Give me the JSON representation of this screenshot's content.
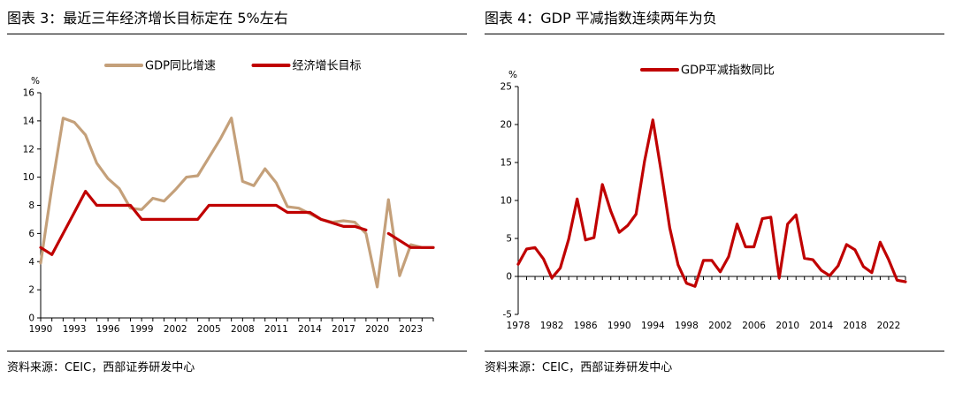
{
  "left_panel": {
    "title": "图表 3：最近三年经济增长目标定在 5%左右",
    "source": "资料来源：CEIC，西部证券研发中心"
  },
  "right_panel": {
    "title": "图表 4：GDP 平减指数连续两年为负",
    "source": "资料来源：CEIC，西部证券研发中心"
  },
  "chart_data": [
    {
      "type": "line",
      "unit_label": "%",
      "x": [
        1990,
        1991,
        1992,
        1993,
        1994,
        1995,
        1996,
        1997,
        1998,
        1999,
        2000,
        2001,
        2002,
        2003,
        2004,
        2005,
        2006,
        2007,
        2008,
        2009,
        2010,
        2011,
        2012,
        2013,
        2014,
        2015,
        2016,
        2017,
        2018,
        2019,
        2020,
        2021,
        2022,
        2023,
        2024,
        2025
      ],
      "xticks": [
        "1990",
        "1993",
        "1996",
        "1999",
        "2002",
        "2005",
        "2008",
        "2011",
        "2014",
        "2017",
        "2020",
        "2023"
      ],
      "xlim": [
        1990,
        2025
      ],
      "ylim": [
        0,
        16
      ],
      "yticks": [
        0,
        2,
        4,
        6,
        8,
        10,
        12,
        14,
        16
      ],
      "series": [
        {
          "name": "GDP同比增速",
          "color": "#C4A07A",
          "values": [
            3.9,
            9.3,
            14.2,
            13.9,
            13.0,
            11.0,
            9.9,
            9.2,
            7.8,
            7.7,
            8.5,
            8.3,
            9.1,
            10.0,
            10.1,
            11.4,
            12.7,
            14.2,
            9.7,
            9.4,
            10.6,
            9.6,
            7.9,
            7.8,
            7.4,
            7.0,
            6.8,
            6.9,
            6.8,
            6.0,
            2.2,
            8.4,
            3.0,
            5.2,
            5.0,
            5.0
          ]
        },
        {
          "name": "经济增长目标",
          "color": "#C00000",
          "values": [
            5,
            4.5,
            6,
            7.5,
            9,
            8,
            8,
            8,
            8,
            7,
            7,
            7,
            7,
            7,
            7,
            8,
            8,
            8,
            8,
            8,
            8,
            8,
            7.5,
            7.5,
            7.5,
            7,
            6.75,
            6.5,
            6.5,
            6.25,
            null,
            6,
            5.5,
            5,
            5,
            5
          ]
        }
      ]
    },
    {
      "type": "line",
      "unit_label": "%",
      "x": [
        1978,
        1979,
        1980,
        1981,
        1982,
        1983,
        1984,
        1985,
        1986,
        1987,
        1988,
        1989,
        1990,
        1991,
        1992,
        1993,
        1994,
        1995,
        1996,
        1997,
        1998,
        1999,
        2000,
        2001,
        2002,
        2003,
        2004,
        2005,
        2006,
        2007,
        2008,
        2009,
        2010,
        2011,
        2012,
        2013,
        2014,
        2015,
        2016,
        2017,
        2018,
        2019,
        2020,
        2021,
        2022,
        2023,
        2024
      ],
      "xticks": [
        "1978",
        "1982",
        "1986",
        "1990",
        "1994",
        "1998",
        "2002",
        "2006",
        "2010",
        "2014",
        "2018",
        "2022"
      ],
      "xlim": [
        1978,
        2024
      ],
      "ylim": [
        -5,
        25
      ],
      "yticks": [
        -5,
        0,
        5,
        10,
        15,
        20,
        25
      ],
      "series": [
        {
          "name": "GDP平减指数同比",
          "color": "#C00000",
          "values": [
            1.6,
            3.6,
            3.8,
            2.3,
            -0.2,
            1.1,
            4.9,
            10.2,
            4.8,
            5.1,
            12.1,
            8.6,
            5.8,
            6.7,
            8.2,
            15.1,
            20.6,
            13.7,
            6.4,
            1.5,
            -0.9,
            -1.3,
            2.1,
            2.1,
            0.6,
            2.6,
            6.9,
            3.9,
            3.9,
            7.6,
            7.8,
            -0.2,
            6.9,
            8.1,
            2.4,
            2.2,
            0.8,
            0.1,
            1.4,
            4.2,
            3.5,
            1.3,
            0.5,
            4.5,
            2.2,
            -0.5,
            -0.7
          ]
        }
      ]
    }
  ]
}
